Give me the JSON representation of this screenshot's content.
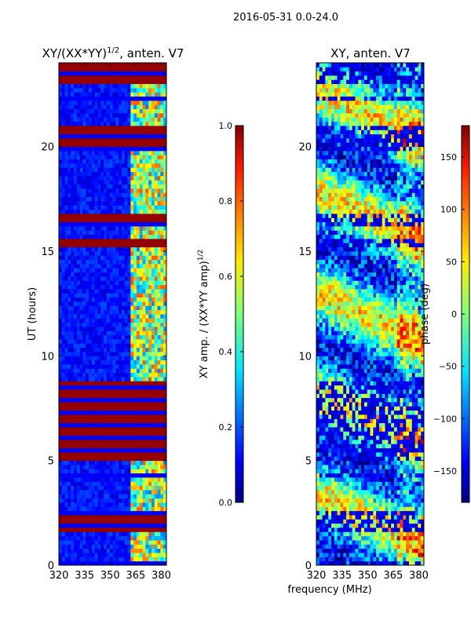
{
  "figure": {
    "suptitle": "2016-05-31 0.0-24.0",
    "xlabel": "frequency (MHz)"
  },
  "chart_data": [
    {
      "type": "heatmap",
      "title_main": "XY/(XX*YY)",
      "title_exp": "1/2",
      "title_tail": ", anten. V7",
      "xlabel": "",
      "ylabel": "UT (hours)",
      "xlim": [
        320,
        383
      ],
      "ylim": [
        0,
        24
      ],
      "xticks": [
        320,
        335,
        350,
        365,
        380
      ],
      "yticks": [
        0,
        5,
        10,
        15,
        20
      ],
      "colorbar": {
        "label_main": "XY amp. / (XX*YY amp)",
        "label_exp": "1/2",
        "range": [
          0.0,
          1.0
        ],
        "ticks": [
          "0.0",
          "0.2",
          "0.4",
          "0.6",
          "0.8",
          "1.0"
        ]
      },
      "flagged_blocks_hours": [
        [
          0.0,
          0.3
        ],
        [
          1.6,
          2.6
        ],
        [
          4.2,
          4.5
        ],
        [
          5.0,
          8.8
        ],
        [
          15.2,
          15.7
        ],
        [
          16.3,
          16.9
        ],
        [
          19.9,
          21.1
        ],
        [
          22.3,
          22.5
        ],
        [
          23.1,
          24.0
        ]
      ],
      "active_band_mhz": [
        362,
        383
      ]
    },
    {
      "type": "heatmap",
      "title": "XY, anten. V7",
      "xlabel": "",
      "ylabel": "",
      "xlim": [
        320,
        383
      ],
      "ylim": [
        0,
        24
      ],
      "xticks": [
        320,
        335,
        350,
        365,
        380
      ],
      "yticks": [
        0,
        5,
        10,
        15,
        20
      ],
      "colorbar": {
        "label": "phase (deg)",
        "range": [
          -180,
          180
        ],
        "ticks": [
          "−150",
          "−100",
          "−50",
          "0",
          "50",
          "100",
          "150"
        ]
      }
    }
  ]
}
